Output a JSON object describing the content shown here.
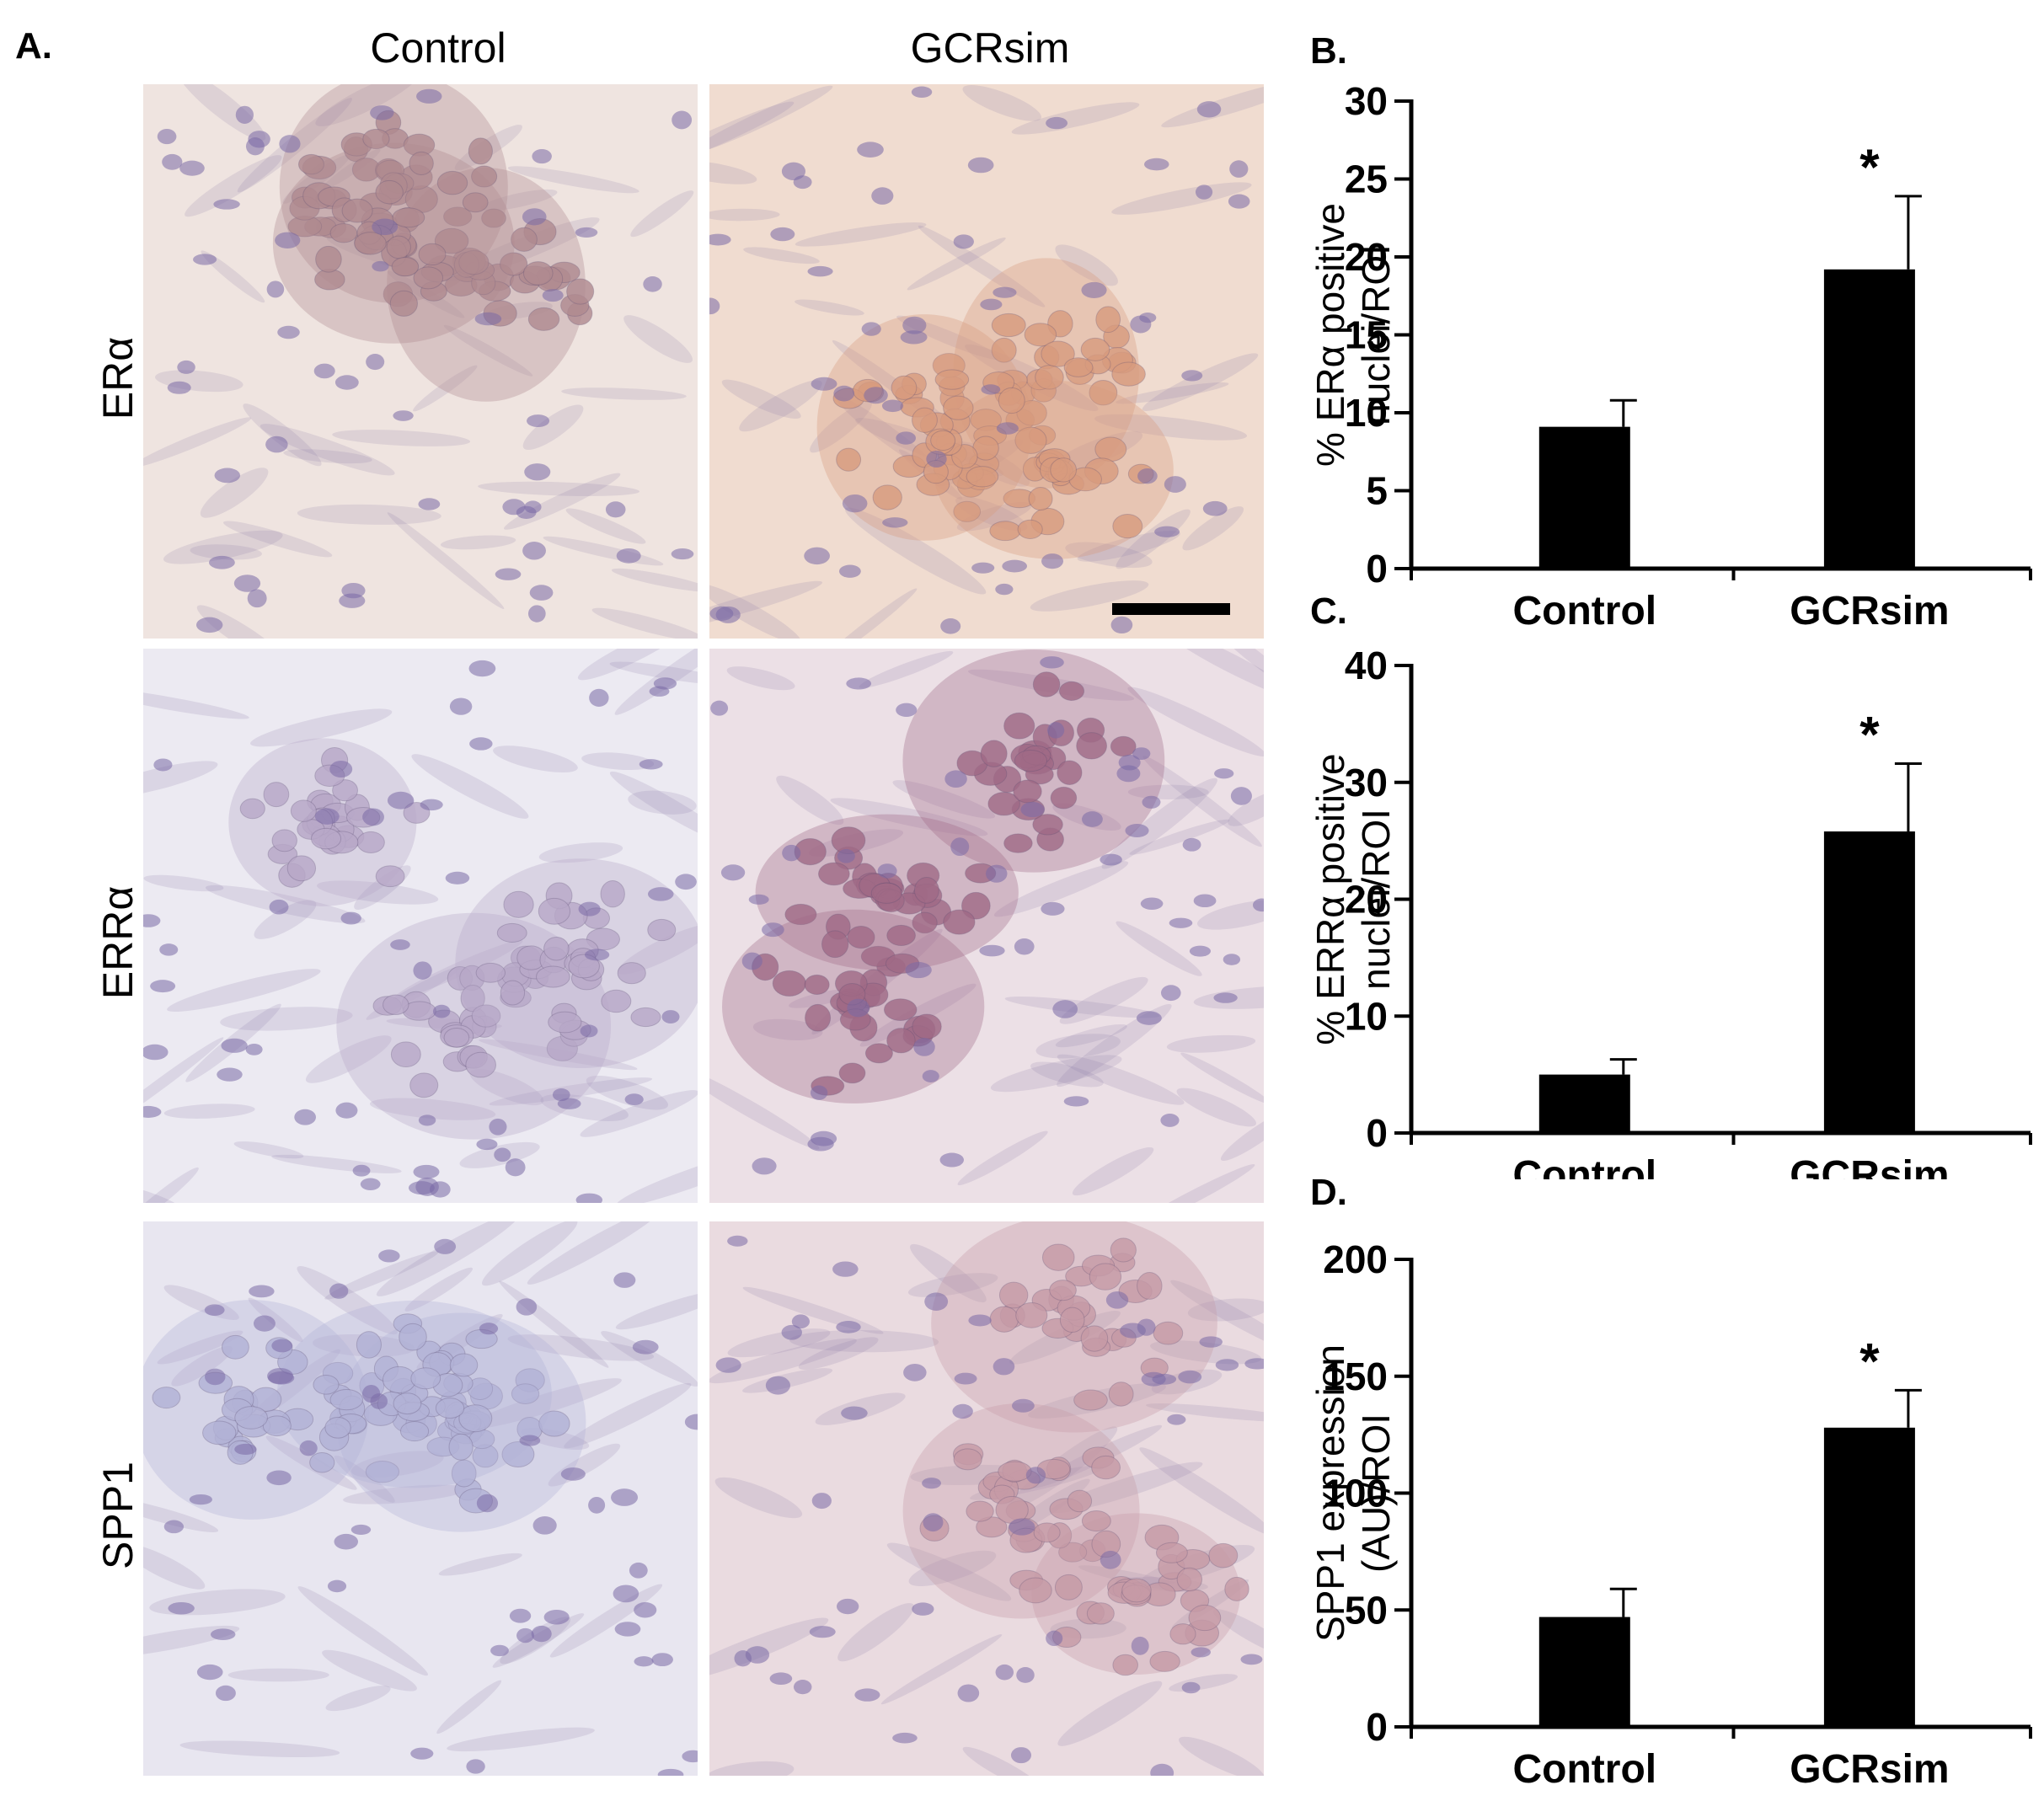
{
  "panel_a": {
    "letter": "A.",
    "columns": [
      "Control",
      "GCRsim"
    ],
    "rows": [
      "ERα",
      "ERRα",
      "SPP1"
    ],
    "stain_colors": {
      "ERa_control": "#b08a90",
      "ERa_gcrsim": "#d89b7e",
      "ERRa_control": "#b8a8c8",
      "ERRa_gcrsim": "#a06a86",
      "SPP1_control": "#b2b2d6",
      "SPP1_gcrsim": "#c69aa6"
    }
  },
  "chart_data": [
    {
      "panel": "B.",
      "type": "bar",
      "categories": [
        "Control",
        "GCRsim"
      ],
      "values": [
        9.1,
        19.2
      ],
      "errors": [
        1.7,
        4.7
      ],
      "significance": [
        "",
        "*"
      ],
      "ylabel_lines": [
        "% ERα positive",
        "nuclei/ROI"
      ],
      "ylim": [
        0,
        30
      ],
      "yticks": [
        0,
        5,
        10,
        15,
        20,
        25,
        30
      ],
      "grid": false,
      "bar_color": "#000000"
    },
    {
      "panel": "C.",
      "type": "bar",
      "categories": [
        "Control",
        "GCRsim"
      ],
      "values": [
        5.0,
        25.8
      ],
      "errors": [
        1.3,
        5.8
      ],
      "significance": [
        "",
        "*"
      ],
      "ylabel_lines": [
        "% ERRα positive",
        "nuclei/ROI"
      ],
      "ylim": [
        0,
        40
      ],
      "yticks": [
        0,
        10,
        20,
        30,
        40
      ],
      "grid": false,
      "bar_color": "#000000"
    },
    {
      "panel": "D.",
      "type": "bar",
      "categories": [
        "Control",
        "GCRsim"
      ],
      "values": [
        47,
        128
      ],
      "errors": [
        12,
        16
      ],
      "significance": [
        "",
        "*"
      ],
      "ylabel_lines": [
        "SPP1 expression",
        "(AU)/ROI"
      ],
      "ylim": [
        0,
        200
      ],
      "yticks": [
        0,
        50,
        100,
        150,
        200
      ],
      "grid": false,
      "bar_color": "#000000"
    }
  ]
}
